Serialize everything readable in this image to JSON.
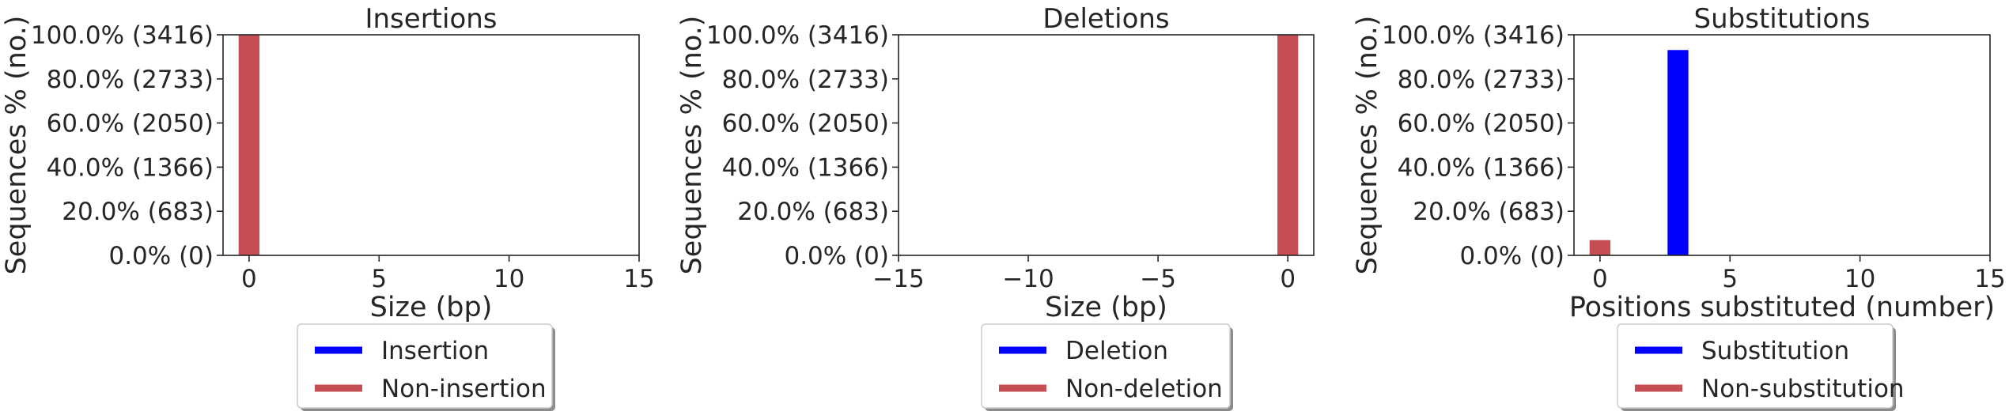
{
  "colors": {
    "edited": "#0000ff",
    "unedited": "#c44e52",
    "axis": "#262626"
  },
  "chart_data": [
    {
      "type": "bar",
      "title": "Insertions",
      "xlabel": "Size (bp)",
      "ylabel": "Sequences % (no.)",
      "xlim": [
        -1,
        15
      ],
      "ylim": [
        0,
        3416
      ],
      "xticks": [
        0,
        5,
        10,
        15
      ],
      "xtick_labels": [
        "0",
        "5",
        "10",
        "15"
      ],
      "yticks": [
        0,
        683,
        1366,
        2050,
        2733,
        3416
      ],
      "ytick_labels": [
        "0.0% (0)",
        "20.0% (683)",
        "40.0% (1366)",
        "60.0% (2050)",
        "80.0% (2733)",
        "100.0% (3416)"
      ],
      "bars": [
        {
          "x": 0,
          "value": 3416,
          "series": "unedited"
        }
      ],
      "legend": {
        "placement": "bottom-center",
        "entries": [
          {
            "label": "Insertion",
            "series": "edited"
          },
          {
            "label": "Non-insertion",
            "series": "unedited"
          }
        ]
      }
    },
    {
      "type": "bar",
      "title": "Deletions",
      "xlabel": "Size (bp)",
      "ylabel": "Sequences % (no.)",
      "xlim": [
        -15,
        1
      ],
      "ylim": [
        0,
        3416
      ],
      "xticks": [
        -15,
        -10,
        -5,
        0
      ],
      "xtick_labels": [
        "−15",
        "−10",
        "−5",
        "0"
      ],
      "yticks": [
        0,
        683,
        1366,
        2050,
        2733,
        3416
      ],
      "ytick_labels": [
        "0.0% (0)",
        "20.0% (683)",
        "40.0% (1366)",
        "60.0% (2050)",
        "80.0% (2733)",
        "100.0% (3416)"
      ],
      "bars": [
        {
          "x": 0,
          "value": 3416,
          "series": "unedited"
        }
      ],
      "legend": {
        "placement": "bottom-center",
        "entries": [
          {
            "label": "Deletion",
            "series": "edited"
          },
          {
            "label": "Non-deletion",
            "series": "unedited"
          }
        ]
      }
    },
    {
      "type": "bar",
      "title": "Substitutions",
      "xlabel": "Positions substituted (number)",
      "ylabel": "Sequences % (no.)",
      "xlim": [
        -1,
        15
      ],
      "ylim": [
        0,
        3416
      ],
      "xticks": [
        0,
        5,
        10,
        15
      ],
      "xtick_labels": [
        "0",
        "5",
        "10",
        "15"
      ],
      "yticks": [
        0,
        683,
        1366,
        2050,
        2733,
        3416
      ],
      "ytick_labels": [
        "0.0% (0)",
        "20.0% (683)",
        "40.0% (1366)",
        "60.0% (2050)",
        "80.0% (2733)",
        "100.0% (3416)"
      ],
      "bars": [
        {
          "x": 0,
          "value": 236,
          "series": "unedited"
        },
        {
          "x": 3,
          "value": 3180,
          "series": "edited"
        }
      ],
      "legend": {
        "placement": "bottom-center",
        "entries": [
          {
            "label": "Substitution",
            "series": "edited"
          },
          {
            "label": "Non-substitution",
            "series": "unedited"
          }
        ]
      }
    }
  ]
}
